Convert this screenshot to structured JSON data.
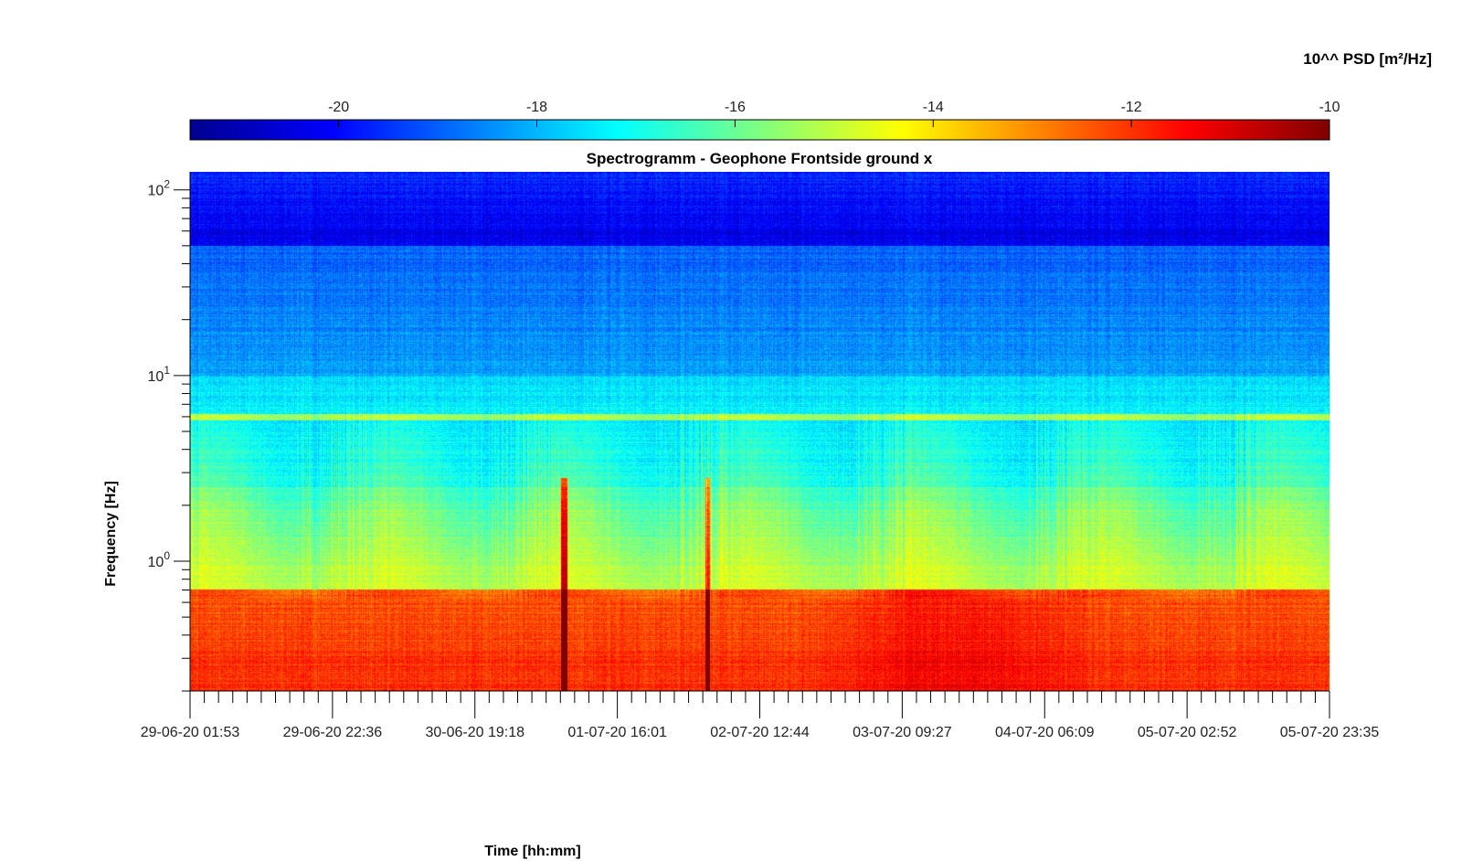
{
  "chart_data": {
    "type": "heatmap",
    "title": "Spectrogramm - Geophone Frontside ground x",
    "xlabel": "Time [hh:mm]",
    "ylabel": "Frequency [Hz]",
    "y_scale": "log",
    "ylim": [
      0.2,
      125
    ],
    "y_ticks": [
      {
        "value": 1,
        "base": "10",
        "exp": "0"
      },
      {
        "value": 10,
        "base": "10",
        "exp": "1"
      },
      {
        "value": 100,
        "base": "10",
        "exp": "2"
      }
    ],
    "x_tick_labels": [
      "29-06-20 01:53",
      "29-06-20 22:36",
      "30-06-20 19:18",
      "01-07-20 16:01",
      "02-07-20 12:44",
      "03-07-20 09:27",
      "04-07-20 06:09",
      "05-07-20 02:52",
      "05-07-20 23:35"
    ],
    "colorbar": {
      "label": "10^^ PSD [m²/Hz]",
      "colormap": "jet",
      "range": [
        -21.5,
        -10
      ],
      "ticks": [
        -20,
        -18,
        -16,
        -14,
        -12,
        -10
      ],
      "tick_labels": [
        "-20",
        "-18",
        "-16",
        "-14",
        "-12",
        "-10"
      ]
    },
    "features": [
      {
        "desc": "persistent line",
        "freq_hz": 6.0,
        "level": -14.5
      },
      {
        "desc": "transient spike",
        "time": "01-07-20 ~04:30",
        "level": -11
      },
      {
        "desc": "transient spike",
        "time": "02-07-20 ~02:00",
        "level": -11.5
      },
      {
        "desc": "low-frequency band",
        "freq_hz": [
          0.2,
          0.7
        ],
        "level": -12
      }
    ]
  }
}
